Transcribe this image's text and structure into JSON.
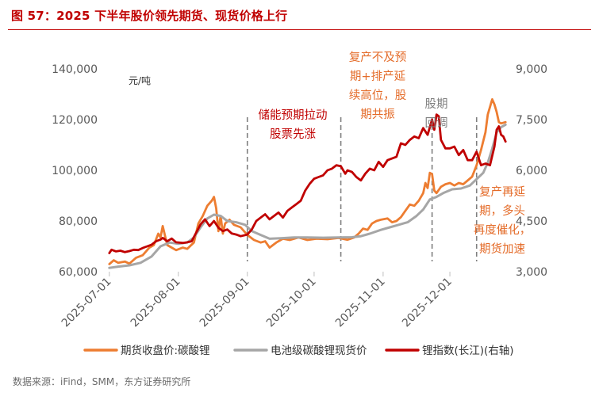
{
  "header": {
    "title": "图 57：2025 下半年股价领先期货、现货价格上行"
  },
  "footer": {
    "source": "数据来源：iFind，SMM，东方证券研究所"
  },
  "colors": {
    "title": "#c00000",
    "futures": "#ed7d31",
    "spot": "#a6a6a6",
    "index": "#c00000",
    "annotation_dark": "#c00000",
    "annotation_orange": "#e46c2a",
    "annotation_gray": "#7f7f7f",
    "divider": "#7f7f7f"
  },
  "chart_data": {
    "type": "line",
    "y_unit_label": "元/吨",
    "x_ticks": [
      "2025-07-01",
      "2025-08-01",
      "2025-09-01",
      "2025-10-01",
      "2025-11-01",
      "2025-12-01"
    ],
    "x_range": [
      "2025-06-30",
      "2025-12-27"
    ],
    "y_left": {
      "min": 60000,
      "max": 140000,
      "ticks": [
        "60,000",
        "80,000",
        "100,000",
        "120,000",
        "140,000"
      ]
    },
    "y_right": {
      "min": 3000,
      "max": 9000,
      "ticks": [
        "3,000",
        "4,500",
        "6,000",
        "7,500",
        "9,000"
      ]
    },
    "grid": false,
    "legend_position": "bottom",
    "series": [
      {
        "name": "期货收盘价:碳酸锂",
        "axis": "left",
        "points": [
          [
            "2025-07-01",
            63000
          ],
          [
            "2025-07-03",
            64500
          ],
          [
            "2025-07-05",
            63500
          ],
          [
            "2025-07-08",
            64000
          ],
          [
            "2025-07-10",
            63200
          ],
          [
            "2025-07-13",
            65500
          ],
          [
            "2025-07-16",
            66500
          ],
          [
            "2025-07-19",
            69500
          ],
          [
            "2025-07-21",
            70500
          ],
          [
            "2025-07-23",
            75000
          ],
          [
            "2025-07-24",
            73500
          ],
          [
            "2025-07-25",
            78000
          ],
          [
            "2025-07-27",
            70500
          ],
          [
            "2025-07-29",
            69500
          ],
          [
            "2025-07-31",
            68500
          ],
          [
            "2025-08-03",
            69500
          ],
          [
            "2025-08-05",
            69000
          ],
          [
            "2025-08-08",
            71500
          ],
          [
            "2025-08-10",
            79000
          ],
          [
            "2025-08-12",
            82000
          ],
          [
            "2025-08-14",
            86000
          ],
          [
            "2025-08-16",
            88000
          ],
          [
            "2025-08-17",
            89500
          ],
          [
            "2025-08-18",
            85000
          ],
          [
            "2025-08-19",
            76000
          ],
          [
            "2025-08-20",
            82000
          ],
          [
            "2025-08-21",
            75000
          ],
          [
            "2025-08-22",
            79000
          ],
          [
            "2025-08-24",
            80500
          ],
          [
            "2025-08-26",
            78500
          ],
          [
            "2025-08-29",
            77500
          ],
          [
            "2025-09-01",
            74500
          ],
          [
            "2025-09-04",
            72500
          ],
          [
            "2025-09-07",
            71500
          ],
          [
            "2025-09-09",
            72000
          ],
          [
            "2025-09-11",
            69500
          ],
          [
            "2025-09-14",
            71500
          ],
          [
            "2025-09-17",
            73000
          ],
          [
            "2025-09-20",
            72500
          ],
          [
            "2025-09-24",
            73500
          ],
          [
            "2025-09-28",
            72500
          ],
          [
            "2025-10-02",
            73000
          ],
          [
            "2025-10-07",
            72800
          ],
          [
            "2025-10-12",
            73300
          ],
          [
            "2025-10-16",
            72600
          ],
          [
            "2025-10-19",
            73500
          ],
          [
            "2025-10-21",
            75000
          ],
          [
            "2025-10-23",
            77000
          ],
          [
            "2025-10-25",
            76500
          ],
          [
            "2025-10-27",
            79000
          ],
          [
            "2025-10-29",
            80000
          ],
          [
            "2025-10-31",
            80500
          ],
          [
            "2025-11-03",
            81000
          ],
          [
            "2025-11-05",
            79500
          ],
          [
            "2025-11-07",
            80000
          ],
          [
            "2025-11-09",
            81500
          ],
          [
            "2025-11-11",
            84000
          ],
          [
            "2025-11-13",
            86500
          ],
          [
            "2025-11-15",
            86000
          ],
          [
            "2025-11-17",
            88000
          ],
          [
            "2025-11-19",
            91000
          ],
          [
            "2025-11-20",
            95000
          ],
          [
            "2025-11-21",
            93000
          ],
          [
            "2025-11-22",
            99000
          ],
          [
            "2025-11-23",
            98500
          ],
          [
            "2025-11-24",
            92000
          ],
          [
            "2025-11-25",
            91000
          ],
          [
            "2025-11-27",
            93500
          ],
          [
            "2025-11-29",
            94500
          ],
          [
            "2025-12-01",
            95000
          ],
          [
            "2025-12-03",
            94000
          ],
          [
            "2025-12-05",
            95000
          ],
          [
            "2025-12-07",
            94500
          ],
          [
            "2025-12-09",
            96000
          ],
          [
            "2025-12-11",
            97500
          ],
          [
            "2025-12-13",
            102000
          ],
          [
            "2025-12-15",
            108000
          ],
          [
            "2025-12-17",
            115000
          ],
          [
            "2025-12-18",
            122000
          ],
          [
            "2025-12-20",
            128000
          ],
          [
            "2025-12-21",
            126000
          ],
          [
            "2025-12-22",
            123000
          ],
          [
            "2025-12-23",
            119000
          ],
          [
            "2025-12-24",
            118500
          ],
          [
            "2025-12-26",
            119000
          ]
        ]
      },
      {
        "name": "电池级碳酸锂现货价",
        "axis": "left",
        "points": [
          [
            "2025-07-01",
            61500
          ],
          [
            "2025-07-05",
            62000
          ],
          [
            "2025-07-10",
            62500
          ],
          [
            "2025-07-15",
            63500
          ],
          [
            "2025-07-20",
            66000
          ],
          [
            "2025-07-24",
            70000
          ],
          [
            "2025-07-28",
            71500
          ],
          [
            "2025-08-01",
            71000
          ],
          [
            "2025-08-05",
            71500
          ],
          [
            "2025-08-08",
            73500
          ],
          [
            "2025-08-11",
            77500
          ],
          [
            "2025-08-14",
            81000
          ],
          [
            "2025-08-17",
            82500
          ],
          [
            "2025-08-20",
            82000
          ],
          [
            "2025-08-23",
            80000
          ],
          [
            "2025-08-27",
            79500
          ],
          [
            "2025-08-31",
            78500
          ],
          [
            "2025-09-03",
            76000
          ],
          [
            "2025-09-07",
            74500
          ],
          [
            "2025-09-11",
            73000
          ],
          [
            "2025-09-16",
            73200
          ],
          [
            "2025-09-22",
            73500
          ],
          [
            "2025-09-28",
            73500
          ],
          [
            "2025-10-05",
            73400
          ],
          [
            "2025-10-12",
            73500
          ],
          [
            "2025-10-18",
            73600
          ],
          [
            "2025-10-22",
            74000
          ],
          [
            "2025-10-26",
            75000
          ],
          [
            "2025-10-31",
            76500
          ],
          [
            "2025-11-04",
            77500
          ],
          [
            "2025-11-08",
            78500
          ],
          [
            "2025-11-12",
            79500
          ],
          [
            "2025-11-16",
            82000
          ],
          [
            "2025-11-19",
            84500
          ],
          [
            "2025-11-22",
            88500
          ],
          [
            "2025-11-25",
            89500
          ],
          [
            "2025-11-28",
            91000
          ],
          [
            "2025-12-02",
            92500
          ],
          [
            "2025-12-06",
            92800
          ],
          [
            "2025-12-10",
            94000
          ],
          [
            "2025-12-13",
            96500
          ],
          [
            "2025-12-16",
            99000
          ],
          [
            "2025-12-18",
            103000
          ],
          [
            "2025-12-20",
            108500
          ],
          [
            "2025-12-22",
            115000
          ],
          [
            "2025-12-24",
            117000
          ],
          [
            "2025-12-26",
            118000
          ]
        ]
      },
      {
        "name": "锂指数(长江)(右轴)",
        "axis": "right",
        "points": [
          [
            "2025-07-01",
            3550
          ],
          [
            "2025-07-02",
            3650
          ],
          [
            "2025-07-04",
            3600
          ],
          [
            "2025-07-06",
            3620
          ],
          [
            "2025-07-08",
            3580
          ],
          [
            "2025-07-10",
            3610
          ],
          [
            "2025-07-12",
            3650
          ],
          [
            "2025-07-14",
            3640
          ],
          [
            "2025-07-16",
            3700
          ],
          [
            "2025-07-18",
            3750
          ],
          [
            "2025-07-20",
            3800
          ],
          [
            "2025-07-22",
            3900
          ],
          [
            "2025-07-24",
            3950
          ],
          [
            "2025-07-25",
            4000
          ],
          [
            "2025-07-27",
            3900
          ],
          [
            "2025-07-29",
            3980
          ],
          [
            "2025-07-31",
            3870
          ],
          [
            "2025-08-03",
            3850
          ],
          [
            "2025-08-05",
            3870
          ],
          [
            "2025-08-07",
            3900
          ],
          [
            "2025-08-09",
            4150
          ],
          [
            "2025-08-11",
            4400
          ],
          [
            "2025-08-13",
            4550
          ],
          [
            "2025-08-15",
            4350
          ],
          [
            "2025-08-17",
            4500
          ],
          [
            "2025-08-19",
            4300
          ],
          [
            "2025-08-21",
            4200
          ],
          [
            "2025-08-23",
            4250
          ],
          [
            "2025-08-25",
            4130
          ],
          [
            "2025-08-27",
            4100
          ],
          [
            "2025-08-29",
            4050
          ],
          [
            "2025-09-01",
            4100
          ],
          [
            "2025-09-03",
            4250
          ],
          [
            "2025-09-05",
            4500
          ],
          [
            "2025-09-07",
            4600
          ],
          [
            "2025-09-09",
            4700
          ],
          [
            "2025-09-11",
            4550
          ],
          [
            "2025-09-13",
            4650
          ],
          [
            "2025-09-15",
            4750
          ],
          [
            "2025-09-17",
            4600
          ],
          [
            "2025-09-19",
            4800
          ],
          [
            "2025-09-21",
            4900
          ],
          [
            "2025-09-23",
            5000
          ],
          [
            "2025-09-25",
            5100
          ],
          [
            "2025-09-27",
            5400
          ],
          [
            "2025-09-29",
            5600
          ],
          [
            "2025-10-01",
            5750
          ],
          [
            "2025-10-03",
            5800
          ],
          [
            "2025-10-05",
            5850
          ],
          [
            "2025-10-07",
            6000
          ],
          [
            "2025-10-09",
            6050
          ],
          [
            "2025-10-11",
            6150
          ],
          [
            "2025-10-13",
            6120
          ],
          [
            "2025-10-15",
            5900
          ],
          [
            "2025-10-16",
            6000
          ],
          [
            "2025-10-18",
            5950
          ],
          [
            "2025-10-20",
            5800
          ],
          [
            "2025-10-22",
            5700
          ],
          [
            "2025-10-24",
            5900
          ],
          [
            "2025-10-26",
            6050
          ],
          [
            "2025-10-28",
            6000
          ],
          [
            "2025-10-30",
            6250
          ],
          [
            "2025-11-01",
            6100
          ],
          [
            "2025-11-03",
            6300
          ],
          [
            "2025-11-05",
            6350
          ],
          [
            "2025-11-07",
            6400
          ],
          [
            "2025-11-09",
            6800
          ],
          [
            "2025-11-11",
            6750
          ],
          [
            "2025-11-13",
            6900
          ],
          [
            "2025-11-15",
            7000
          ],
          [
            "2025-11-17",
            6950
          ],
          [
            "2025-11-19",
            7250
          ],
          [
            "2025-11-21",
            7050
          ],
          [
            "2025-11-23",
            7500
          ],
          [
            "2025-11-24",
            7200
          ],
          [
            "2025-11-25",
            7650
          ],
          [
            "2025-11-26",
            7600
          ],
          [
            "2025-11-27",
            6900
          ],
          [
            "2025-11-29",
            6650
          ],
          [
            "2025-12-01",
            6650
          ],
          [
            "2025-12-03",
            6700
          ],
          [
            "2025-12-05",
            6450
          ],
          [
            "2025-12-07",
            6600
          ],
          [
            "2025-12-09",
            6300
          ],
          [
            "2025-12-11",
            6300
          ],
          [
            "2025-12-13",
            6550
          ],
          [
            "2025-12-15",
            6150
          ],
          [
            "2025-12-17",
            6200
          ],
          [
            "2025-12-19",
            6150
          ],
          [
            "2025-12-21",
            6700
          ],
          [
            "2025-12-22",
            7200
          ],
          [
            "2025-12-23",
            7300
          ],
          [
            "2025-12-24",
            7050
          ],
          [
            "2025-12-25",
            7000
          ],
          [
            "2025-12-26",
            6850
          ]
        ]
      }
    ],
    "dividers": [
      "2025-09-01",
      "2025-10-13",
      "2025-11-23",
      "2025-12-13"
    ],
    "annotations": [
      {
        "lines": [
          "储能预期拉动",
          "股票先涨"
        ],
        "color_key": "annotation_dark"
      },
      {
        "lines": [
          "复产不及预",
          "期+排产延",
          "续高位，股",
          "期共振"
        ],
        "color_key": "annotation_orange"
      },
      {
        "lines": [
          "股期",
          "回调"
        ],
        "color_key": "annotation_gray"
      },
      {
        "lines": [
          "复产再延",
          "期，多头",
          "再度催化，",
          "期货加速"
        ],
        "color_key": "annotation_orange"
      }
    ]
  }
}
